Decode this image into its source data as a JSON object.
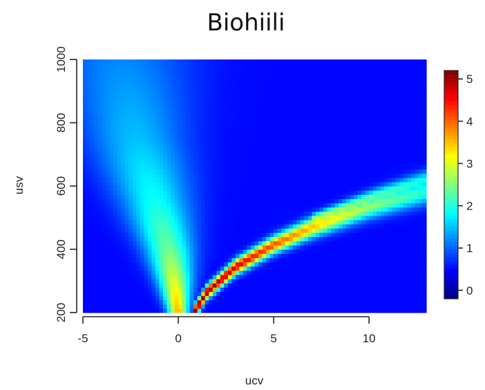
{
  "chart_data": {
    "type": "heatmap",
    "title": "Biohiili",
    "xlabel": "ucv",
    "ylabel": "usv",
    "xlim": [
      -5,
      13
    ],
    "ylim": [
      200,
      1000
    ],
    "x_ticks": [
      -5,
      0,
      5,
      10
    ],
    "x_tick_labels": [
      "-5",
      "0",
      "5",
      "10"
    ],
    "y_ticks": [
      200,
      400,
      600,
      800,
      1000
    ],
    "y_tick_labels": [
      "200",
      "400",
      "600",
      "800",
      "1000"
    ],
    "colorbar": {
      "range": [
        -0.2,
        5.2
      ],
      "ticks": [
        0,
        1,
        2,
        3,
        4,
        5
      ],
      "tick_labels": [
        "0",
        "1",
        "2",
        "3",
        "4",
        "5"
      ],
      "palette": [
        "#00007f",
        "#0000ff",
        "#007fff",
        "#00ffff",
        "#7fff7f",
        "#ffff00",
        "#ff7f00",
        "#ff0000",
        "#7f0000"
      ]
    },
    "background_value": 0.5,
    "features": [
      {
        "kind": "ridge",
        "path": [
          [
            0.8,
            200
          ],
          [
            1.5,
            265
          ],
          [
            3,
            345
          ],
          [
            5,
            415
          ],
          [
            7,
            470
          ],
          [
            10,
            535
          ],
          [
            13,
            585
          ]
        ],
        "peak": [
          5.2,
          5.1,
          4.7,
          4.1,
          3.5,
          2.6,
          2.0
        ]
      },
      {
        "kind": "ridge",
        "path": [
          [
            7,
            490
          ],
          [
            10,
            560
          ],
          [
            13,
            620
          ]
        ],
        "peak": [
          3.0,
          2.4,
          1.9
        ]
      },
      {
        "kind": "plume",
        "path": [
          [
            0,
            200
          ],
          [
            -0.2,
            300
          ],
          [
            -0.5,
            400
          ],
          [
            -1.2,
            550
          ],
          [
            -2.2,
            750
          ],
          [
            -3,
            1000
          ]
        ],
        "peak": [
          3.6,
          3.0,
          2.4,
          1.9,
          1.5,
          1.2
        ]
      }
    ]
  }
}
